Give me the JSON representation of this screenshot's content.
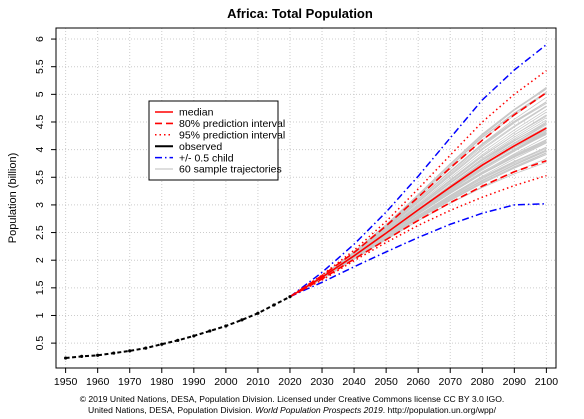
{
  "chart_data": {
    "type": "line",
    "title": "Africa: Total Population",
    "xlabel": "",
    "ylabel": "Population (billion)",
    "xlim": [
      1947,
      2103
    ],
    "ylim": [
      0.05,
      6.2
    ],
    "x_ticks": [
      1950,
      1960,
      1970,
      1980,
      1990,
      2000,
      2010,
      2020,
      2030,
      2040,
      2050,
      2060,
      2070,
      2080,
      2090,
      2100
    ],
    "y_ticks": [
      0.5,
      1,
      1.5,
      2,
      2.5,
      3,
      3.5,
      4,
      4.5,
      5,
      5.5,
      6
    ],
    "y_tick_labels": [
      "0.5",
      "1",
      "1.5",
      "2",
      "2.5",
      "3",
      "3.5",
      "4",
      "4.5",
      "5",
      "5.5",
      "6"
    ],
    "grid": true,
    "legend_position": "upper-left",
    "legend": [
      {
        "label": "median",
        "color": "#ff0000",
        "dash": "solid"
      },
      {
        "label": "80% prediction interval",
        "color": "#ff0000",
        "dash": "dashed"
      },
      {
        "label": "95% prediction interval",
        "color": "#ff0000",
        "dash": "dotted"
      },
      {
        "label": "observed",
        "color": "#000000",
        "dash": "solid"
      },
      {
        "label": "+/- 0.5 child",
        "color": "#0000ff",
        "dash": "dashdot"
      },
      {
        "label": "60 sample trajectories",
        "color": "#bebebe",
        "dash": "solid"
      }
    ],
    "observed": {
      "x": [
        1950,
        1955,
        1960,
        1965,
        1970,
        1975,
        1980,
        1985,
        1990,
        1995,
        2000,
        2005,
        2010,
        2015,
        2020
      ],
      "y": [
        0.23,
        0.26,
        0.28,
        0.32,
        0.36,
        0.41,
        0.48,
        0.55,
        0.63,
        0.72,
        0.81,
        0.92,
        1.04,
        1.19,
        1.34
      ]
    },
    "projection_x": [
      2020,
      2030,
      2040,
      2050,
      2060,
      2070,
      2080,
      2090,
      2100
    ],
    "series": [
      {
        "key": "median",
        "values": [
          1.34,
          1.69,
          2.08,
          2.49,
          2.91,
          3.32,
          3.72,
          4.07,
          4.39
        ]
      },
      {
        "key": "pi80_upper",
        "values": [
          1.34,
          1.72,
          2.14,
          2.62,
          3.14,
          3.67,
          4.17,
          4.63,
          5.03
        ]
      },
      {
        "key": "pi80_lower",
        "values": [
          1.34,
          1.66,
          2.02,
          2.37,
          2.72,
          3.04,
          3.34,
          3.6,
          3.8
        ]
      },
      {
        "key": "pi95_upper",
        "values": [
          1.34,
          1.73,
          2.18,
          2.7,
          3.29,
          3.9,
          4.5,
          5.0,
          5.43
        ]
      },
      {
        "key": "pi95_lower",
        "values": [
          1.34,
          1.64,
          1.99,
          2.32,
          2.63,
          2.9,
          3.14,
          3.35,
          3.53
        ]
      },
      {
        "key": "plus_half_child",
        "values": [
          1.34,
          1.78,
          2.29,
          2.87,
          3.52,
          4.21,
          4.9,
          5.44,
          5.9
        ]
      },
      {
        "key": "minus_half_child",
        "values": [
          1.34,
          1.6,
          1.88,
          2.15,
          2.41,
          2.65,
          2.85,
          3.0,
          3.02
        ]
      }
    ]
  },
  "credit": {
    "line1": "© 2019 United Nations, DESA, Population Division. Licensed under Creative Commons license CC BY 3.0 IGO.",
    "line2_prefix": "United Nations, DESA, Population Division. ",
    "line2_italic": "World Population Prospects 2019",
    "line2_suffix": ". http://population.un.org/wpp/"
  }
}
